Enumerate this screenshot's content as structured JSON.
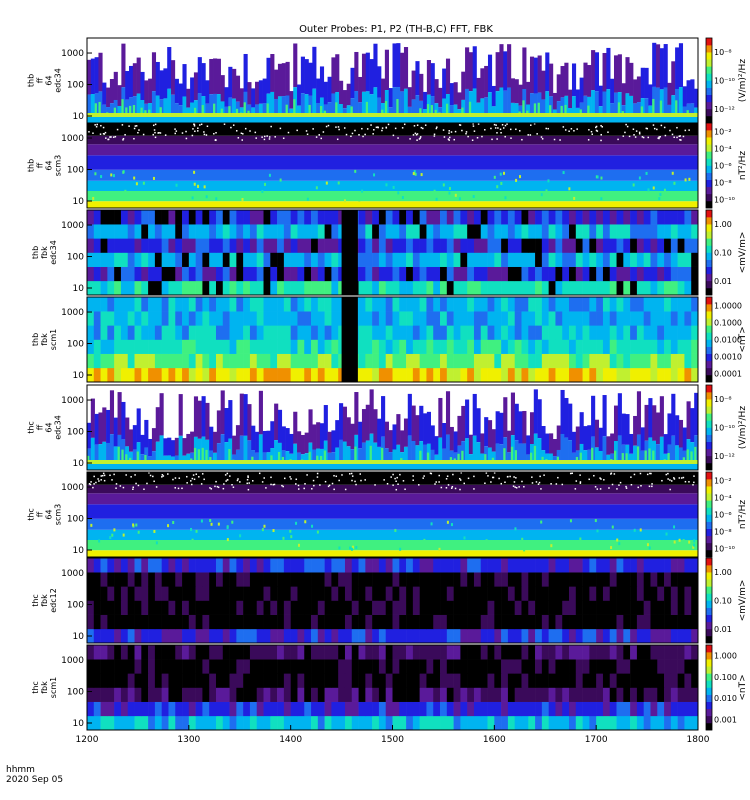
{
  "chart_data": {
    "type": "heatmap",
    "title": "Outer Probes: P1, P2 (TH-B,C) FFT, FBK",
    "x": {
      "label_time": "hhmm",
      "label_date": "2020 Sep 05",
      "ticks": [
        "1200",
        "1300",
        "1400",
        "1500",
        "1600",
        "1700",
        "1800"
      ],
      "range": [
        1200,
        1800
      ]
    },
    "panels": [
      {
        "name": "thb ff 64 edc34",
        "label_lines": [
          "thb",
          "ff",
          "64",
          "edc34"
        ],
        "y_ticks": [
          "10",
          "100",
          "1000"
        ],
        "colorbar_unit": "(V/m)²/Hz",
        "colorbar_ticks": [
          "10⁻¹²",
          "10⁻¹⁰",
          "10⁻⁸"
        ],
        "style": "spiky_fft"
      },
      {
        "name": "thb ff 64 scm3",
        "label_lines": [
          "thb",
          "ff",
          "64",
          "scm3"
        ],
        "y_ticks": [
          "10",
          "100",
          "1000"
        ],
        "colorbar_unit": "nT²/Hz",
        "colorbar_ticks": [
          "10⁻¹⁰",
          "10⁻⁸",
          "10⁻⁶",
          "10⁻⁴",
          "10⁻²"
        ],
        "style": "banded_scm"
      },
      {
        "name": "thb fbk edc34",
        "label_lines": [
          "thb",
          "fbk",
          "edc34"
        ],
        "y_ticks": [
          "10",
          "100",
          "1000"
        ],
        "colorbar_unit": "<mV/m>",
        "colorbar_ticks": [
          "0.01",
          "0.10",
          "1.00"
        ],
        "style": "fbk_edc",
        "gap_x": [
          1450,
          1466
        ]
      },
      {
        "name": "thb fbk scm1",
        "label_lines": [
          "thb",
          "fbk",
          "scm1"
        ],
        "y_ticks": [
          "10",
          "100",
          "1000"
        ],
        "colorbar_unit": "<nT>",
        "colorbar_ticks": [
          "0.0001",
          "0.0010",
          "0.0100",
          "0.1000",
          "1.0000"
        ],
        "style": "fbk_scm",
        "gap_x": [
          1450,
          1466
        ]
      },
      {
        "name": "thc ff 64 edc34",
        "label_lines": [
          "thc",
          "ff",
          "64",
          "edc34"
        ],
        "y_ticks": [
          "10",
          "100",
          "1000"
        ],
        "colorbar_unit": "(V/m)²/Hz",
        "colorbar_ticks": [
          "10⁻¹²",
          "10⁻¹⁰",
          "10⁻⁸"
        ],
        "style": "spiky_fft"
      },
      {
        "name": "thc ff 64 scm3",
        "label_lines": [
          "thc",
          "ff",
          "64",
          "scm3"
        ],
        "y_ticks": [
          "10",
          "100",
          "1000"
        ],
        "colorbar_unit": "nT²/Hz",
        "colorbar_ticks": [
          "10⁻¹⁰",
          "10⁻⁸",
          "10⁻⁶",
          "10⁻⁴",
          "10⁻²"
        ],
        "style": "banded_scm"
      },
      {
        "name": "thc fbk edc12",
        "label_lines": [
          "thc",
          "fbk",
          "edc12"
        ],
        "y_ticks": [
          "10",
          "100",
          "1000"
        ],
        "colorbar_unit": "<mV/m>",
        "colorbar_ticks": [
          "0.01",
          "0.10",
          "1.00"
        ],
        "style": "fbk_dark"
      },
      {
        "name": "thc fbk scm1",
        "label_lines": [
          "thc",
          "fbk",
          "scm1"
        ],
        "y_ticks": [
          "10",
          "100",
          "1000"
        ],
        "colorbar_unit": "<nT>",
        "colorbar_ticks": [
          "0.001",
          "0.010",
          "0.100",
          "1.000"
        ],
        "style": "fbk_dark2"
      }
    ],
    "colormap": [
      "#000000",
      "#3a0a5a",
      "#5a1a9a",
      "#2020e0",
      "#1e6ef0",
      "#00b4f0",
      "#10e0c0",
      "#40f080",
      "#c0f030",
      "#f0f000",
      "#f09000",
      "#e01010"
    ]
  }
}
